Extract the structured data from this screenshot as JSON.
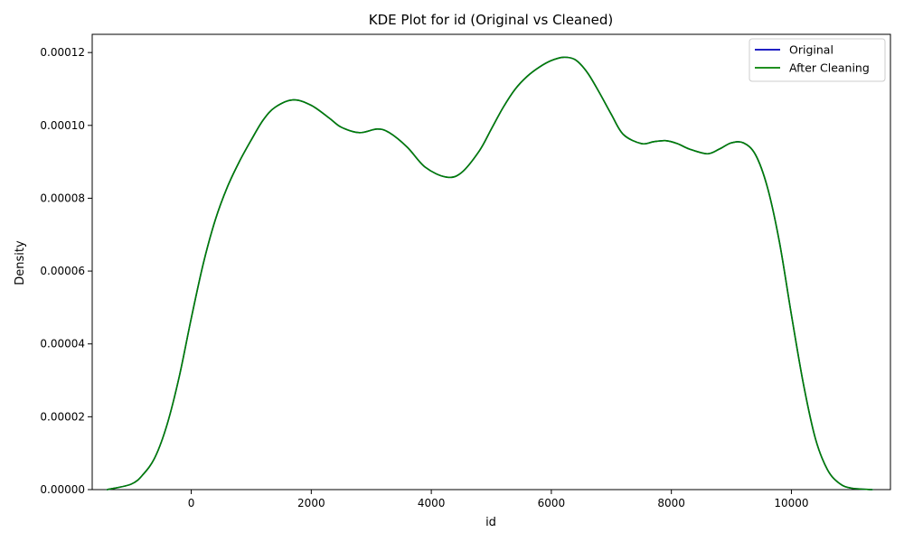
{
  "chart_data": {
    "type": "line",
    "title": "KDE Plot for id (Original vs Cleaned)",
    "xlabel": "id",
    "ylabel": "Density",
    "xlim": [
      -1650,
      11650
    ],
    "ylim": [
      0,
      0.000125
    ],
    "xticks": [
      0,
      2000,
      4000,
      6000,
      8000,
      10000
    ],
    "xtick_labels": [
      "0",
      "2000",
      "4000",
      "6000",
      "8000",
      "10000"
    ],
    "yticks": [
      0,
      2e-05,
      4e-05,
      6e-05,
      8e-05,
      0.0001,
      0.00012
    ],
    "ytick_labels": [
      "0.00000",
      "0.00002",
      "0.00004",
      "0.00006",
      "0.00008",
      "0.00010",
      "0.00012"
    ],
    "grid": false,
    "legend_position": "top-right",
    "series": [
      {
        "name": "Original",
        "color": "#0000bb",
        "x": [
          -1400,
          -1000,
          -800,
          -600,
          -400,
          -200,
          0,
          200,
          400,
          600,
          800,
          1000,
          1200,
          1400,
          1700,
          2000,
          2300,
          2500,
          2800,
          3100,
          3300,
          3600,
          3900,
          4250,
          4500,
          4800,
          5000,
          5200,
          5400,
          5600,
          5800,
          6000,
          6200,
          6400,
          6600,
          6800,
          7000,
          7200,
          7500,
          7700,
          7900,
          8100,
          8300,
          8600,
          8800,
          9000,
          9200,
          9400,
          9600,
          9800,
          10000,
          10200,
          10400,
          10600,
          10800,
          11000,
          11350
        ],
        "y": [
          0.0,
          1.5e-06,
          4.2e-06,
          9e-06,
          1.8e-05,
          3.1e-05,
          4.7e-05,
          6.2e-05,
          7.4e-05,
          8.3e-05,
          9e-05,
          9.6e-05,
          0.0001015,
          0.000105,
          0.000107,
          0.0001055,
          0.000102,
          9.95e-05,
          9.8e-05,
          9.9e-05,
          9.8e-05,
          9.4e-05,
          8.85e-05,
          8.58e-05,
          8.7e-05,
          9.3e-05,
          9.9e-05,
          0.000105,
          0.00011,
          0.0001135,
          0.000116,
          0.0001178,
          0.0001187,
          0.000118,
          0.0001145,
          0.000109,
          0.000103,
          9.75e-05,
          9.5e-05,
          9.55e-05,
          9.58e-05,
          9.5e-05,
          9.35e-05,
          9.22e-05,
          9.35e-05,
          9.52e-05,
          9.52e-05,
          9.2e-05,
          8.3e-05,
          6.8e-05,
          4.8e-05,
          2.9e-05,
          1.4e-05,
          5.5e-06,
          1.7e-06,
          4e-07,
          0.0
        ]
      },
      {
        "name": "After Cleaning",
        "color": "#008000",
        "x": [
          -1400,
          -1000,
          -800,
          -600,
          -400,
          -200,
          0,
          200,
          400,
          600,
          800,
          1000,
          1200,
          1400,
          1700,
          2000,
          2300,
          2500,
          2800,
          3100,
          3300,
          3600,
          3900,
          4250,
          4500,
          4800,
          5000,
          5200,
          5400,
          5600,
          5800,
          6000,
          6200,
          6400,
          6600,
          6800,
          7000,
          7200,
          7500,
          7700,
          7900,
          8100,
          8300,
          8600,
          8800,
          9000,
          9200,
          9400,
          9600,
          9800,
          10000,
          10200,
          10400,
          10600,
          10800,
          11000,
          11350
        ],
        "y": [
          0.0,
          1.5e-06,
          4.2e-06,
          9e-06,
          1.8e-05,
          3.1e-05,
          4.7e-05,
          6.2e-05,
          7.4e-05,
          8.3e-05,
          9e-05,
          9.6e-05,
          0.0001015,
          0.000105,
          0.000107,
          0.0001055,
          0.000102,
          9.95e-05,
          9.8e-05,
          9.9e-05,
          9.8e-05,
          9.4e-05,
          8.85e-05,
          8.58e-05,
          8.7e-05,
          9.3e-05,
          9.9e-05,
          0.000105,
          0.00011,
          0.0001135,
          0.000116,
          0.0001178,
          0.0001187,
          0.000118,
          0.0001145,
          0.000109,
          0.000103,
          9.75e-05,
          9.5e-05,
          9.55e-05,
          9.58e-05,
          9.5e-05,
          9.35e-05,
          9.22e-05,
          9.35e-05,
          9.52e-05,
          9.52e-05,
          9.2e-05,
          8.3e-05,
          6.8e-05,
          4.8e-05,
          2.9e-05,
          1.4e-05,
          5.5e-06,
          1.7e-06,
          4e-07,
          0.0
        ]
      }
    ]
  }
}
